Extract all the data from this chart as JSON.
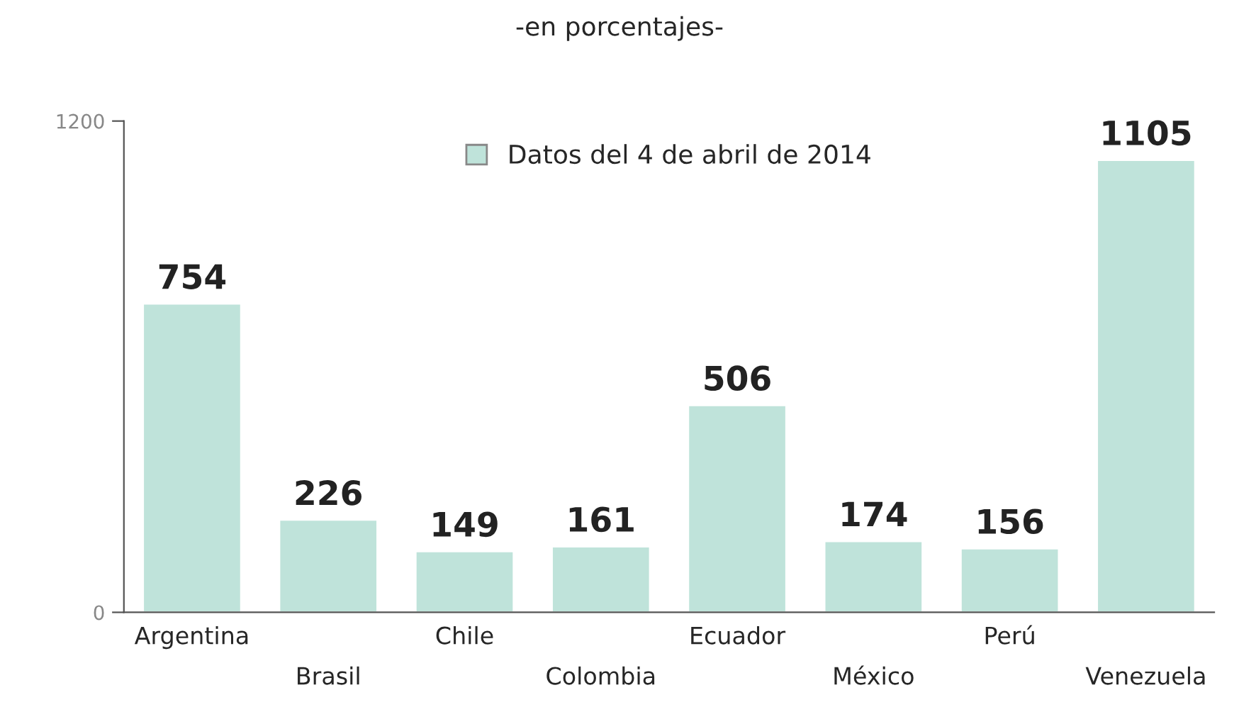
{
  "chart_data": {
    "type": "bar",
    "subtitle": "-en porcentajes-",
    "categories": [
      "Argentina",
      "Brasil",
      "Chile",
      "Colombia",
      "Ecuador",
      "México",
      "Perú",
      "Venezuela"
    ],
    "series": [
      {
        "name": "Datos del 4 de abril de 2014",
        "color": "#bfe3da",
        "values": [
          754,
          226,
          149,
          161,
          506,
          174,
          156,
          1105
        ]
      }
    ],
    "ylim": [
      0,
      1200
    ],
    "yticks": [
      0,
      1200
    ],
    "data_labels": true,
    "grid": false,
    "legend": "top"
  }
}
